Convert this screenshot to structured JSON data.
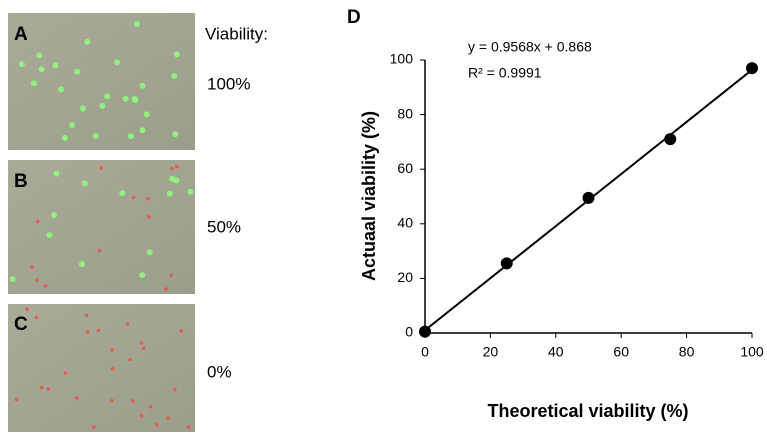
{
  "viability_heading": "Viability:",
  "panels": [
    {
      "label": "A",
      "viability": "100%"
    },
    {
      "label": "B",
      "viability": "50%"
    },
    {
      "label": "C",
      "viability": "0%"
    }
  ],
  "chart_data": {
    "type": "scatter",
    "panel_label": "D",
    "x": [
      0,
      25,
      50,
      75,
      100
    ],
    "values": [
      0.5,
      25.5,
      49.5,
      71,
      97
    ],
    "color": "#000000",
    "xlim": [
      0,
      100
    ],
    "ylim": [
      0,
      100
    ],
    "xticks": [
      0,
      20,
      40,
      60,
      80,
      100
    ],
    "yticks": [
      0,
      20,
      40,
      60,
      80,
      100
    ],
    "xlabel": "Theoretical viability (%)",
    "ylabel": "Actuaal viability (%)",
    "annotations": [
      "y = 0.9568x + 0.868",
      "R² = 0.9991"
    ],
    "trendline": true
  }
}
